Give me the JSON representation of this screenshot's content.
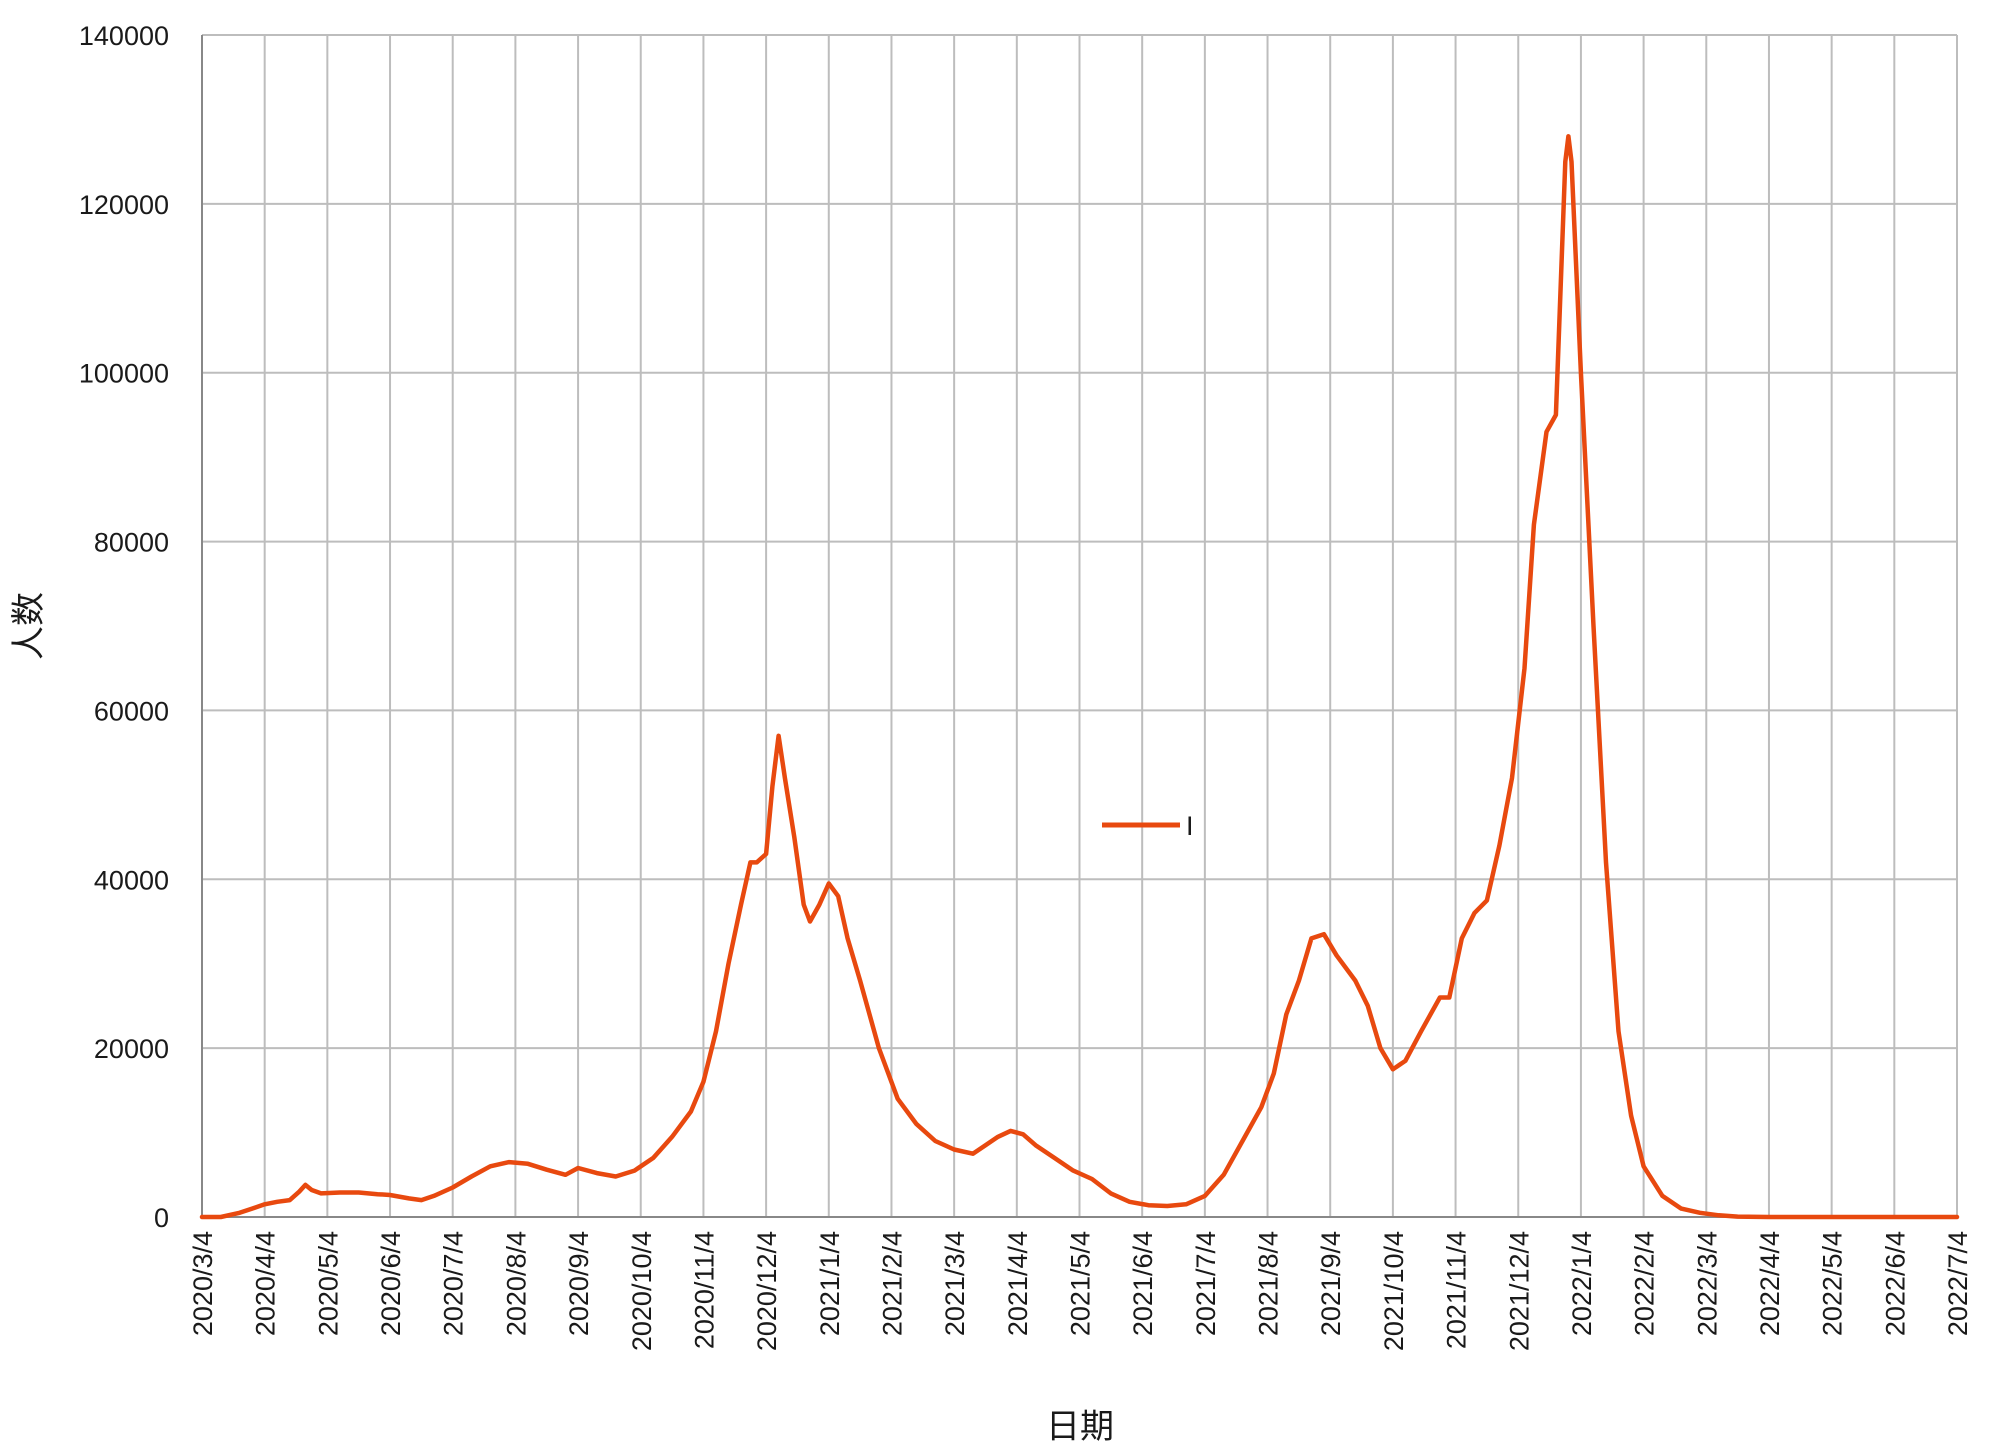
{
  "chart_data": {
    "type": "line",
    "title": "",
    "xlabel": "日期",
    "ylabel": "人数",
    "x_categories": [
      "2020/3/4",
      "2020/4/4",
      "2020/5/4",
      "2020/6/4",
      "2020/7/4",
      "2020/8/4",
      "2020/9/4",
      "2020/10/4",
      "2020/11/4",
      "2020/12/4",
      "2021/1/4",
      "2021/2/4",
      "2021/3/4",
      "2021/4/4",
      "2021/5/4",
      "2021/6/4",
      "2021/7/4",
      "2021/8/4",
      "2021/9/4",
      "2021/10/4",
      "2021/11/4",
      "2021/12/4",
      "2022/1/4",
      "2022/2/4",
      "2022/3/4",
      "2022/4/4",
      "2022/5/4",
      "2022/6/4",
      "2022/7/4"
    ],
    "ylim": [
      0,
      140000
    ],
    "yticks": [
      "0",
      "20000",
      "40000",
      "60000",
      "80000",
      "100000",
      "120000",
      "140000"
    ],
    "grid": true,
    "legend_position": "center",
    "colors": {
      "series": "#e8490f",
      "grid": "#bdbdbd",
      "axis": "#888888"
    },
    "series": [
      {
        "name": "I",
        "points": [
          [
            0.0,
            0
          ],
          [
            0.3,
            0
          ],
          [
            0.6,
            500
          ],
          [
            0.8,
            1000
          ],
          [
            1.0,
            1500
          ],
          [
            1.2,
            1800
          ],
          [
            1.4,
            2000
          ],
          [
            1.55,
            3000
          ],
          [
            1.65,
            3800
          ],
          [
            1.75,
            3200
          ],
          [
            1.9,
            2800
          ],
          [
            2.2,
            2900
          ],
          [
            2.5,
            2900
          ],
          [
            2.8,
            2700
          ],
          [
            3.0,
            2600
          ],
          [
            3.3,
            2200
          ],
          [
            3.5,
            2000
          ],
          [
            3.7,
            2500
          ],
          [
            4.0,
            3500
          ],
          [
            4.3,
            4800
          ],
          [
            4.6,
            6000
          ],
          [
            4.9,
            6500
          ],
          [
            5.2,
            6300
          ],
          [
            5.5,
            5600
          ],
          [
            5.8,
            5000
          ],
          [
            6.0,
            5800
          ],
          [
            6.3,
            5200
          ],
          [
            6.6,
            4800
          ],
          [
            6.9,
            5500
          ],
          [
            7.2,
            7000
          ],
          [
            7.5,
            9500
          ],
          [
            7.8,
            12500
          ],
          [
            8.0,
            16000
          ],
          [
            8.2,
            22000
          ],
          [
            8.4,
            30000
          ],
          [
            8.6,
            37000
          ],
          [
            8.75,
            42000
          ],
          [
            8.85,
            42000
          ],
          [
            9.0,
            43000
          ],
          [
            9.1,
            51000
          ],
          [
            9.2,
            57000
          ],
          [
            9.3,
            52000
          ],
          [
            9.45,
            45000
          ],
          [
            9.6,
            37000
          ],
          [
            9.7,
            35000
          ],
          [
            9.85,
            37000
          ],
          [
            10.0,
            39500
          ],
          [
            10.15,
            38000
          ],
          [
            10.3,
            33000
          ],
          [
            10.5,
            28000
          ],
          [
            10.8,
            20000
          ],
          [
            11.1,
            14000
          ],
          [
            11.4,
            11000
          ],
          [
            11.7,
            9000
          ],
          [
            12.0,
            8000
          ],
          [
            12.3,
            7500
          ],
          [
            12.5,
            8500
          ],
          [
            12.7,
            9500
          ],
          [
            12.9,
            10200
          ],
          [
            13.1,
            9800
          ],
          [
            13.3,
            8500
          ],
          [
            13.6,
            7000
          ],
          [
            13.9,
            5500
          ],
          [
            14.2,
            4500
          ],
          [
            14.5,
            2800
          ],
          [
            14.8,
            1800
          ],
          [
            15.1,
            1400
          ],
          [
            15.4,
            1300
          ],
          [
            15.7,
            1500
          ],
          [
            16.0,
            2500
          ],
          [
            16.3,
            5000
          ],
          [
            16.6,
            9000
          ],
          [
            16.9,
            13000
          ],
          [
            17.1,
            17000
          ],
          [
            17.3,
            24000
          ],
          [
            17.5,
            28000
          ],
          [
            17.7,
            33000
          ],
          [
            17.9,
            33500
          ],
          [
            18.1,
            31000
          ],
          [
            18.4,
            28000
          ],
          [
            18.6,
            25000
          ],
          [
            18.8,
            20000
          ],
          [
            19.0,
            17500
          ],
          [
            19.2,
            18500
          ],
          [
            19.45,
            22000
          ],
          [
            19.6,
            24000
          ],
          [
            19.75,
            26000
          ],
          [
            19.9,
            26000
          ],
          [
            20.1,
            33000
          ],
          [
            20.3,
            36000
          ],
          [
            20.5,
            37500
          ],
          [
            20.7,
            44000
          ],
          [
            20.9,
            52000
          ],
          [
            21.1,
            65000
          ],
          [
            21.25,
            82000
          ],
          [
            21.45,
            93000
          ],
          [
            21.6,
            95000
          ],
          [
            21.75,
            125000
          ],
          [
            21.8,
            128000
          ],
          [
            21.85,
            125000
          ],
          [
            22.0,
            100000
          ],
          [
            22.2,
            70000
          ],
          [
            22.4,
            42000
          ],
          [
            22.6,
            22000
          ],
          [
            22.8,
            12000
          ],
          [
            23.0,
            6000
          ],
          [
            23.3,
            2500
          ],
          [
            23.6,
            1000
          ],
          [
            23.9,
            500
          ],
          [
            24.2,
            200
          ],
          [
            24.5,
            50
          ],
          [
            25.0,
            0
          ],
          [
            26.0,
            0
          ],
          [
            27.0,
            0
          ],
          [
            28.0,
            0
          ]
        ]
      }
    ]
  }
}
